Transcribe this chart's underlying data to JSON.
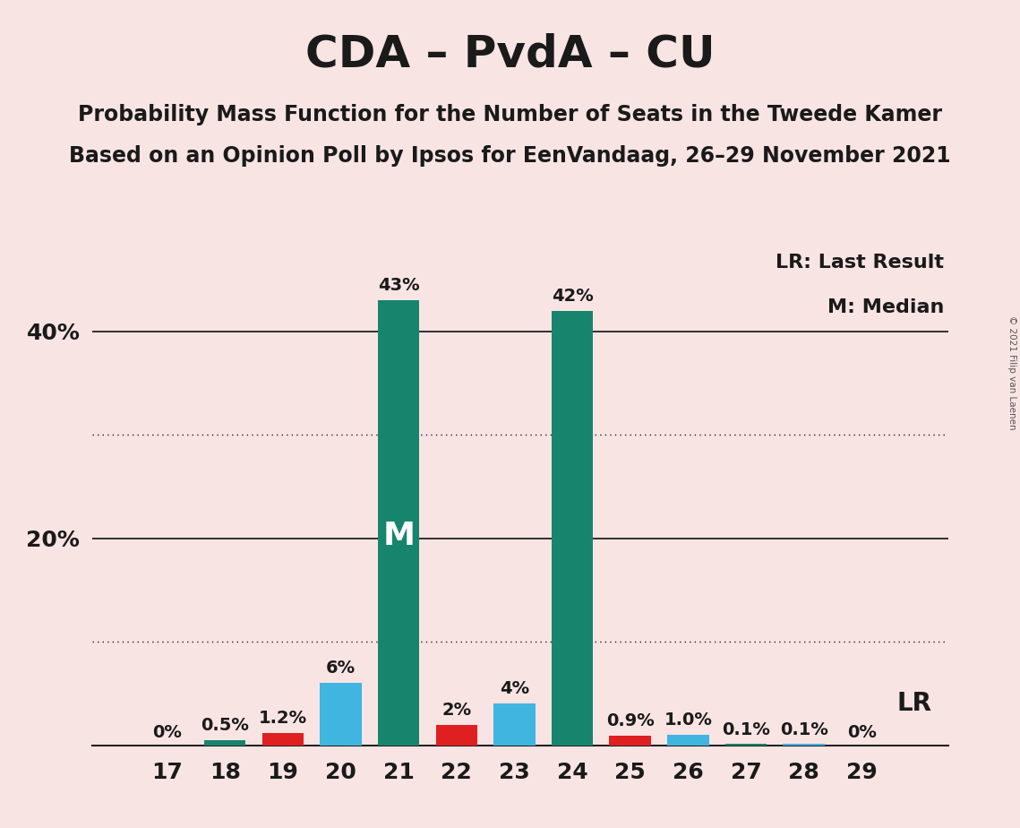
{
  "title": "CDA – PvdA – CU",
  "subtitle1": "Probability Mass Function for the Number of Seats in the Tweede Kamer",
  "subtitle2": "Based on an Opinion Poll by Ipsos for EenVandaag, 26–29 November 2021",
  "copyright": "© 2021 Filip van Laenen",
  "seats": [
    17,
    18,
    19,
    20,
    21,
    22,
    23,
    24,
    25,
    26,
    27,
    28,
    29
  ],
  "pmf_values": [
    0.0,
    0.5,
    1.2,
    6.0,
    43.0,
    2.0,
    4.0,
    42.0,
    0.9,
    1.0,
    0.1,
    0.1,
    0.0
  ],
  "pmf_labels": [
    "0%",
    "0.5%",
    "1.2%",
    "6%",
    "43%",
    "2%",
    "4%",
    "42%",
    "0.9%",
    "1.0%",
    "0.1%",
    "0.1%",
    "0%"
  ],
  "bar_colors": [
    "#17856e",
    "#17856e",
    "#e02020",
    "#3fb5e0",
    "#17856e",
    "#e02020",
    "#3fb5e0",
    "#17856e",
    "#e02020",
    "#3fb5e0",
    "#17856e",
    "#3fb5e0",
    "#17856e"
  ],
  "median_seat": 21,
  "lr_seat": 29,
  "lr_label": "LR",
  "legend_lr": "LR: Last Result",
  "legend_m": "M: Median",
  "ytick_values": [
    20,
    40
  ],
  "ytick_labels": [
    "20%",
    "40%"
  ],
  "ylim": [
    0,
    48
  ],
  "background_color": "#f9e4e4",
  "bar_width": 0.72,
  "text_color": "#1a1a1a",
  "solid_grid_values": [
    20,
    40
  ],
  "dotted_grid_values": [
    10,
    30
  ],
  "title_fontsize": 36,
  "subtitle_fontsize": 17,
  "tick_fontsize": 18,
  "label_fontsize": 14,
  "legend_fontsize": 16,
  "lr_fontsize": 20,
  "m_fontsize": 26
}
